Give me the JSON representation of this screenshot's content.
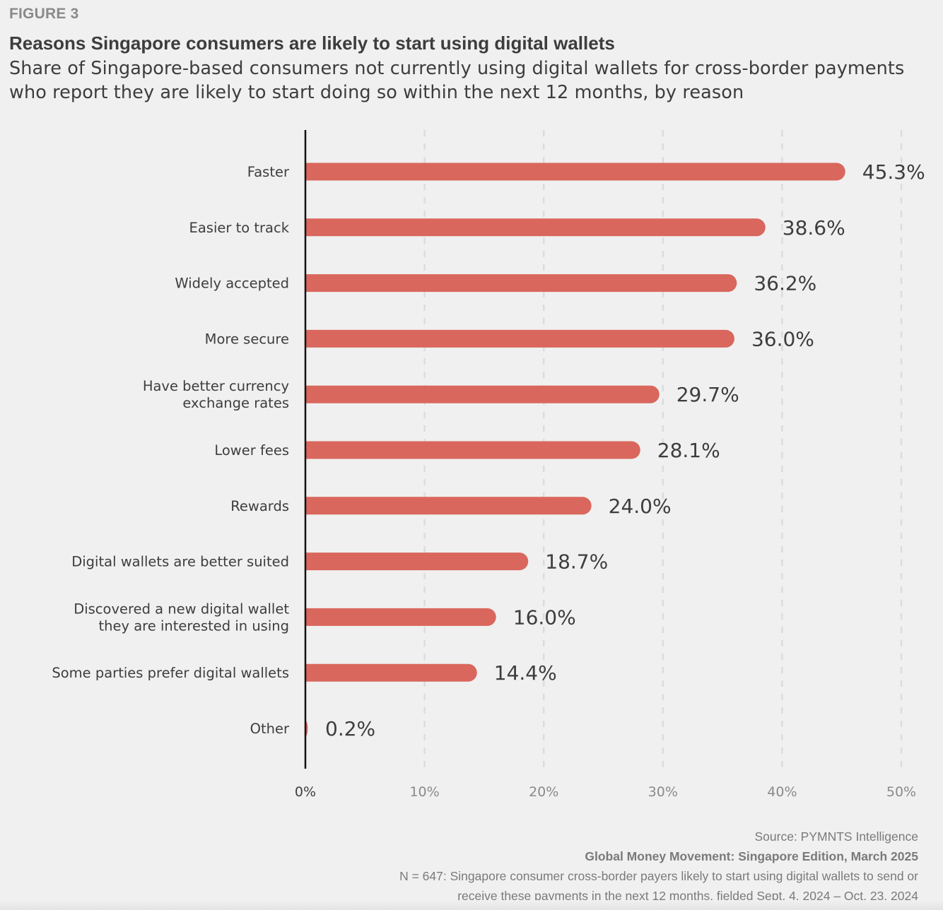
{
  "figure_label": "FIGURE 3",
  "title": "Reasons Singapore consumers are likely to start using digital wallets",
  "subtitle": "Share of Singapore-based consumers not currently using digital wallets for cross-border payments who report they are likely to start doing so within the next 12 months, by reason",
  "colors": {
    "bar": "#d9675d",
    "axis": "#111111",
    "grid": "#dcdcdc",
    "text": "#3d3d3d",
    "muted": "#8a8a8a",
    "background": "#f0f0f0"
  },
  "chart_data": {
    "type": "bar",
    "orientation": "horizontal",
    "title": "Reasons Singapore consumers are likely to start using digital wallets",
    "xlabel": "",
    "ylabel": "",
    "xlim": [
      0,
      50
    ],
    "grid": true,
    "x_ticks": [
      "0%",
      "10%",
      "20%",
      "30%",
      "40%",
      "50%"
    ],
    "x_tick_values": [
      0,
      10,
      20,
      30,
      40,
      50
    ],
    "categories": [
      [
        "Faster"
      ],
      [
        "Easier to track"
      ],
      [
        "Widely accepted"
      ],
      [
        "More secure"
      ],
      [
        "Have better currency",
        "exchange rates"
      ],
      [
        "Lower fees"
      ],
      [
        "Rewards"
      ],
      [
        "Digital wallets are better suited"
      ],
      [
        "Discovered a new digital wallet",
        "they are interested in using"
      ],
      [
        "Some parties prefer digital wallets"
      ],
      [
        "Other"
      ]
    ],
    "values": [
      45.3,
      38.6,
      36.2,
      36.0,
      29.7,
      28.1,
      24.0,
      18.7,
      16.0,
      14.4,
      0.2
    ],
    "value_labels": [
      "45.3%",
      "38.6%",
      "36.2%",
      "36.0%",
      "29.7%",
      "28.1%",
      "24.0%",
      "18.7%",
      "16.0%",
      "14.4%",
      "0.2%"
    ]
  },
  "footer": {
    "source": "Source: PYMNTS Intelligence",
    "report": "Global Money Movement: Singapore Edition, March 2025",
    "note_line1": "N = 647: Singapore consumer cross-border payers likely to start using digital wallets to send or",
    "note_line2": "receive these payments in the next 12 months, fielded Sept. 4, 2024 – Oct. 23, 2024"
  }
}
